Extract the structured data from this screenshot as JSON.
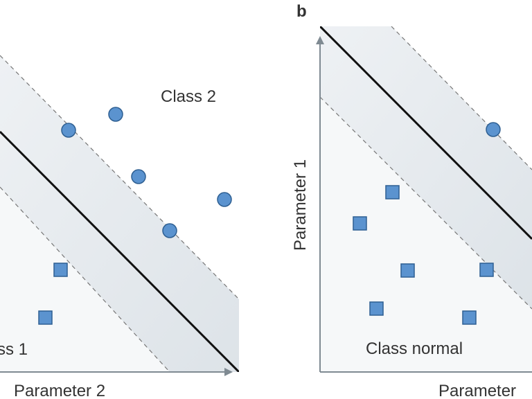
{
  "panel_a": {
    "class_top_label": "Class 2",
    "class_bottom_label": "ss 1",
    "x_axis_label": "Parameter 2"
  },
  "panel_b": {
    "panel_letter": "b",
    "class_bottom_label": "Class normal",
    "y_axis_label": "Parameter 1",
    "x_axis_label": "Parameter"
  },
  "colors": {
    "marker_fill": "#5b93cf",
    "marker_stroke": "#2e5f92",
    "boundary_line": "#111111",
    "margin_line": "#777777",
    "band_fill": "#e5eaee",
    "axis": "#7f8a92"
  }
}
